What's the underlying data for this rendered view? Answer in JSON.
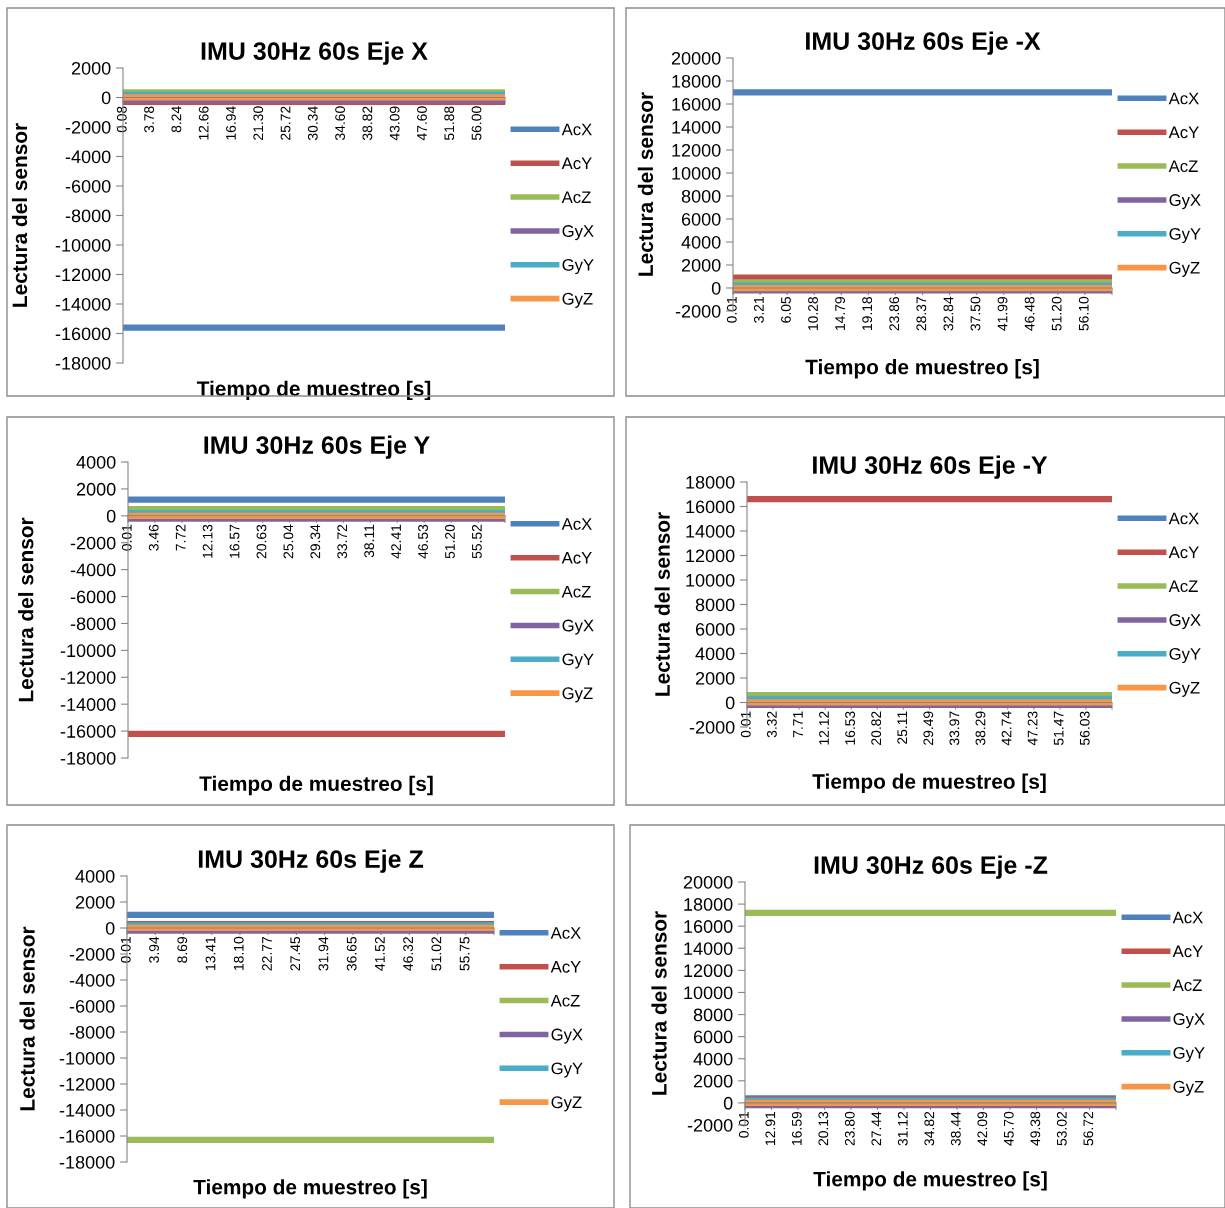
{
  "chart_data": [
    {
      "type": "line",
      "title": "IMU 30Hz 60s Eje X",
      "xlabel": "Tiempo de muestreo [s]",
      "ylabel": "Lectura del sensor",
      "legend": "right",
      "grid": false,
      "marker": "none",
      "line_style": "solid",
      "categories": [
        "0.08",
        "3.78",
        "8.24",
        "12.66",
        "16.94",
        "21.30",
        "25.72",
        "30.34",
        "34.60",
        "38.82",
        "43.09",
        "47.60",
        "51.88",
        "56.00",
        null
      ],
      "ylim": [
        -18000,
        2000
      ],
      "yticks": [
        -18000,
        -16000,
        -14000,
        -12000,
        -10000,
        -8000,
        -6000,
        -4000,
        -2000,
        0,
        2000
      ],
      "series": [
        {
          "name": "AcX",
          "color": "#4f81bd",
          "values": [
            -15600,
            -15600,
            -15600,
            -15600,
            -15600,
            -15600,
            -15600,
            -15600,
            -15600,
            -15600,
            -15600,
            -15600,
            -15600,
            -15600,
            -15600
          ]
        },
        {
          "name": "AcY",
          "color": "#c0504d",
          "values": [
            -300,
            -300,
            -300,
            -300,
            -300,
            -300,
            -300,
            -300,
            -300,
            -300,
            -300,
            -300,
            -300,
            -300,
            -300
          ]
        },
        {
          "name": "AcZ",
          "color": "#9bbb59",
          "values": [
            350,
            350,
            350,
            350,
            350,
            350,
            350,
            350,
            350,
            350,
            350,
            350,
            350,
            350,
            350
          ]
        },
        {
          "name": "GyX",
          "color": "#8064a2",
          "values": [
            -200,
            -200,
            -200,
            -200,
            -200,
            -200,
            -200,
            -200,
            -200,
            -200,
            -200,
            -200,
            -200,
            -200,
            -200
          ]
        },
        {
          "name": "GyY",
          "color": "#4bacc6",
          "values": [
            200,
            200,
            200,
            200,
            200,
            200,
            200,
            200,
            200,
            200,
            200,
            200,
            200,
            200,
            200
          ]
        },
        {
          "name": "GyZ",
          "color": "#f79646",
          "values": [
            0,
            0,
            0,
            0,
            0,
            0,
            0,
            0,
            0,
            0,
            0,
            0,
            0,
            0,
            0
          ]
        }
      ]
    },
    {
      "type": "line",
      "title": "IMU 30Hz 60s Eje -X",
      "xlabel": "Tiempo de muestreo [s]",
      "ylabel": "Lectura del sensor",
      "legend": "right",
      "grid": false,
      "marker": "none",
      "line_style": "solid",
      "categories": [
        "0.01",
        "3.21",
        "6.05",
        "10.28",
        "14.79",
        "19.18",
        "23.86",
        "28.37",
        "32.84",
        "37.50",
        "41.99",
        "46.48",
        "51.20",
        "56.10",
        null
      ],
      "ylim": [
        -2000,
        20000
      ],
      "yticks": [
        -2000,
        0,
        2000,
        4000,
        6000,
        8000,
        10000,
        12000,
        14000,
        16000,
        18000,
        20000
      ],
      "series": [
        {
          "name": "AcX",
          "color": "#4f81bd",
          "values": [
            17000,
            17000,
            17000,
            17000,
            17000,
            17000,
            17000,
            17000,
            17000,
            17000,
            17000,
            17000,
            17000,
            17000,
            17000
          ]
        },
        {
          "name": "AcY",
          "color": "#c0504d",
          "values": [
            900,
            900,
            900,
            900,
            900,
            900,
            900,
            900,
            900,
            900,
            900,
            900,
            900,
            900,
            900
          ]
        },
        {
          "name": "AcZ",
          "color": "#9bbb59",
          "values": [
            500,
            500,
            500,
            500,
            500,
            500,
            500,
            500,
            500,
            500,
            500,
            500,
            500,
            500,
            500
          ]
        },
        {
          "name": "GyX",
          "color": "#8064a2",
          "values": [
            -200,
            -200,
            -200,
            -200,
            -200,
            -200,
            -200,
            -200,
            -200,
            -200,
            -200,
            -200,
            -200,
            -200,
            -200
          ]
        },
        {
          "name": "GyY",
          "color": "#4bacc6",
          "values": [
            200,
            200,
            200,
            200,
            200,
            200,
            200,
            200,
            200,
            200,
            200,
            200,
            200,
            200,
            200
          ]
        },
        {
          "name": "GyZ",
          "color": "#f79646",
          "values": [
            0,
            0,
            0,
            0,
            0,
            0,
            0,
            0,
            0,
            0,
            0,
            0,
            0,
            0,
            0
          ]
        }
      ]
    },
    {
      "type": "line",
      "title": "IMU 30Hz 60s Eje Y",
      "xlabel": "Tiempo de muestreo [s]",
      "ylabel": "Lectura del sensor",
      "legend": "right",
      "grid": false,
      "marker": "none",
      "line_style": "solid",
      "categories": [
        "0.01",
        "3.46",
        "7.72",
        "12.13",
        "16.57",
        "20.63",
        "25.04",
        "29.34",
        "33.72",
        "38.11",
        "42.41",
        "46.53",
        "51.20",
        "55.52",
        null
      ],
      "ylim": [
        -18000,
        4000
      ],
      "yticks": [
        -18000,
        -16000,
        -14000,
        -12000,
        -10000,
        -8000,
        -6000,
        -4000,
        -2000,
        0,
        2000,
        4000
      ],
      "series": [
        {
          "name": "AcX",
          "color": "#4f81bd",
          "values": [
            1200,
            1200,
            1200,
            1200,
            1200,
            1200,
            1200,
            1200,
            1200,
            1200,
            1200,
            1200,
            1200,
            1200,
            1200
          ]
        },
        {
          "name": "AcY",
          "color": "#c0504d",
          "values": [
            -16200,
            -16200,
            -16200,
            -16200,
            -16200,
            -16200,
            -16200,
            -16200,
            -16200,
            -16200,
            -16200,
            -16200,
            -16200,
            -16200,
            -16200
          ]
        },
        {
          "name": "AcZ",
          "color": "#9bbb59",
          "values": [
            500,
            500,
            500,
            500,
            500,
            500,
            500,
            500,
            500,
            500,
            500,
            500,
            500,
            500,
            500
          ]
        },
        {
          "name": "GyX",
          "color": "#8064a2",
          "values": [
            -200,
            -200,
            -200,
            -200,
            -200,
            -200,
            -200,
            -200,
            -200,
            -200,
            -200,
            -200,
            -200,
            -200,
            -200
          ]
        },
        {
          "name": "GyY",
          "color": "#4bacc6",
          "values": [
            200,
            200,
            200,
            200,
            200,
            200,
            200,
            200,
            200,
            200,
            200,
            200,
            200,
            200,
            200
          ]
        },
        {
          "name": "GyZ",
          "color": "#f79646",
          "values": [
            0,
            0,
            0,
            0,
            0,
            0,
            0,
            0,
            0,
            0,
            0,
            0,
            0,
            0,
            0
          ]
        }
      ]
    },
    {
      "type": "line",
      "title": "IMU 30Hz 60s Eje -Y",
      "xlabel": "Tiempo de muestreo [s]",
      "ylabel": "Lectura del sensor",
      "legend": "right",
      "grid": false,
      "marker": "none",
      "line_style": "solid",
      "categories": [
        "0.01",
        "3.32",
        "7.71",
        "12.12",
        "16.53",
        "20.82",
        "25.11",
        "29.49",
        "33.97",
        "38.29",
        "42.74",
        "47.23",
        "51.47",
        "56.03",
        null
      ],
      "ylim": [
        -2000,
        18000
      ],
      "yticks": [
        -2000,
        0,
        2000,
        4000,
        6000,
        8000,
        10000,
        12000,
        14000,
        16000,
        18000
      ],
      "series": [
        {
          "name": "AcX",
          "color": "#4f81bd",
          "values": [
            null,
            null,
            null,
            null,
            null,
            null,
            null,
            null,
            null,
            null,
            null,
            null,
            null,
            null,
            null
          ]
        },
        {
          "name": "AcY",
          "color": "#c0504d",
          "values": [
            16600,
            16600,
            16600,
            16600,
            16600,
            16600,
            16600,
            16600,
            16600,
            16600,
            16600,
            16600,
            16600,
            16600,
            16600
          ]
        },
        {
          "name": "AcZ",
          "color": "#9bbb59",
          "values": [
            600,
            600,
            600,
            600,
            600,
            600,
            600,
            600,
            600,
            600,
            600,
            600,
            600,
            600,
            600
          ]
        },
        {
          "name": "GyX",
          "color": "#8064a2",
          "values": [
            -200,
            -200,
            -200,
            -200,
            -200,
            -200,
            -200,
            -200,
            -200,
            -200,
            -200,
            -200,
            -200,
            -200,
            -200
          ]
        },
        {
          "name": "GyY",
          "color": "#4bacc6",
          "values": [
            300,
            300,
            300,
            300,
            300,
            300,
            300,
            300,
            300,
            300,
            300,
            300,
            300,
            300,
            300
          ]
        },
        {
          "name": "GyZ",
          "color": "#f79646",
          "values": [
            0,
            0,
            0,
            0,
            0,
            0,
            0,
            0,
            0,
            0,
            0,
            0,
            0,
            0,
            0
          ]
        }
      ]
    },
    {
      "type": "line",
      "title": "IMU 30Hz 60s Eje Z",
      "xlabel": "Tiempo de muestreo [s]",
      "ylabel": "Lectura del sensor",
      "legend": "right",
      "grid": false,
      "marker": "none",
      "line_style": "solid",
      "categories": [
        "0.01",
        "3.94",
        "8.69",
        "13.41",
        "18.10",
        "22.77",
        "27.45",
        "31.94",
        "36.65",
        "41.52",
        "46.32",
        "51.02",
        "55.75",
        null
      ],
      "ylim": [
        -18000,
        4000
      ],
      "yticks": [
        -18000,
        -16000,
        -14000,
        -12000,
        -10000,
        -8000,
        -6000,
        -4000,
        -2000,
        0,
        2000,
        4000
      ],
      "series": [
        {
          "name": "AcX",
          "color": "#4f81bd",
          "values": [
            1000,
            1000,
            1000,
            1000,
            1000,
            1000,
            1000,
            1000,
            1000,
            1000,
            1000,
            1000,
            1000,
            1000
          ]
        },
        {
          "name": "AcY",
          "color": "#c0504d",
          "values": [
            300,
            300,
            300,
            300,
            300,
            300,
            300,
            300,
            300,
            300,
            300,
            300,
            300,
            300
          ]
        },
        {
          "name": "AcZ",
          "color": "#9bbb59",
          "values": [
            -16300,
            -16300,
            -16300,
            -16300,
            -16300,
            -16300,
            -16300,
            -16300,
            -16300,
            -16300,
            -16300,
            -16300,
            -16300,
            -16300
          ]
        },
        {
          "name": "GyX",
          "color": "#8064a2",
          "values": [
            -200,
            -200,
            -200,
            -200,
            -200,
            -200,
            -200,
            -200,
            -200,
            -200,
            -200,
            -200,
            -200,
            -200
          ]
        },
        {
          "name": "GyY",
          "color": "#4bacc6",
          "values": [
            200,
            200,
            200,
            200,
            200,
            200,
            200,
            200,
            200,
            200,
            200,
            200,
            200,
            200
          ]
        },
        {
          "name": "GyZ",
          "color": "#f79646",
          "values": [
            0,
            0,
            0,
            0,
            0,
            0,
            0,
            0,
            0,
            0,
            0,
            0,
            0,
            0
          ]
        }
      ]
    },
    {
      "type": "line",
      "title": "IMU 30Hz 60s Eje -Z",
      "xlabel": "Tiempo de muestreo [s]",
      "ylabel": "Lectura del sensor",
      "legend": "right",
      "grid": false,
      "marker": "none",
      "line_style": "solid",
      "categories": [
        "0.01",
        "12.91",
        "16.59",
        "20.13",
        "23.80",
        "27.44",
        "31.12",
        "34.82",
        "38.44",
        "42.09",
        "45.70",
        "49.38",
        "53.02",
        "56.72",
        null
      ],
      "ylim": [
        -2000,
        20000
      ],
      "yticks": [
        -2000,
        0,
        2000,
        4000,
        6000,
        8000,
        10000,
        12000,
        14000,
        16000,
        18000,
        20000
      ],
      "series": [
        {
          "name": "AcX",
          "color": "#4f81bd",
          "values": [
            400,
            400,
            400,
            400,
            400,
            400,
            400,
            400,
            400,
            400,
            400,
            400,
            400,
            400,
            400
          ]
        },
        {
          "name": "AcY",
          "color": "#c0504d",
          "values": [
            300,
            300,
            300,
            300,
            300,
            300,
            300,
            300,
            300,
            300,
            300,
            300,
            300,
            300,
            300
          ]
        },
        {
          "name": "AcZ",
          "color": "#9bbb59",
          "values": [
            17200,
            17200,
            17200,
            17200,
            17200,
            17200,
            17200,
            17200,
            17200,
            17200,
            17200,
            17200,
            17200,
            17200,
            17200
          ]
        },
        {
          "name": "GyX",
          "color": "#8064a2",
          "values": [
            -200,
            -200,
            -200,
            -200,
            -200,
            -200,
            -200,
            -200,
            -200,
            -200,
            -200,
            -200,
            -200,
            -200,
            -200
          ]
        },
        {
          "name": "GyY",
          "color": "#4bacc6",
          "values": [
            200,
            200,
            200,
            200,
            200,
            200,
            200,
            200,
            200,
            200,
            200,
            200,
            200,
            200,
            200
          ]
        },
        {
          "name": "GyZ",
          "color": "#f79646",
          "values": [
            0,
            0,
            0,
            0,
            0,
            0,
            0,
            0,
            0,
            0,
            0,
            0,
            0,
            0,
            0
          ]
        }
      ]
    }
  ]
}
